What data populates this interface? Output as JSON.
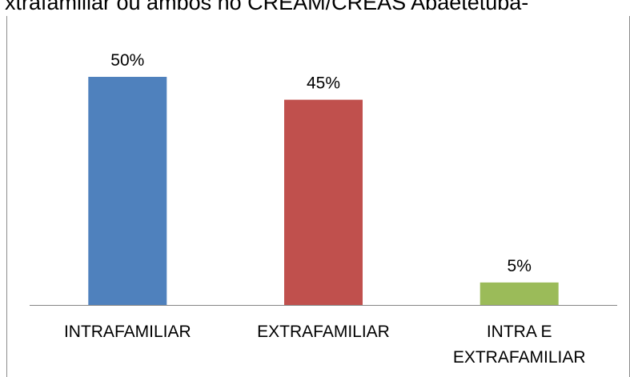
{
  "chart_data": {
    "type": "bar",
    "title": "xtrafamiliar ou ambos no CREAM/CREAS Abaetetuba-",
    "categories": [
      [
        "INTRAFAMILIAR"
      ],
      [
        "EXTRAFAMILIAR"
      ],
      [
        "INTRA E",
        "EXTRAFAMILIAR"
      ]
    ],
    "values": [
      50,
      45,
      5
    ],
    "data_labels": [
      "50%",
      "45%",
      "5%"
    ],
    "colors": [
      "#4f81bd",
      "#c0504d",
      "#9bbb59"
    ],
    "ylim": [
      0,
      50
    ],
    "grid": false,
    "legend": "none",
    "xlabel": "",
    "ylabel": ""
  }
}
